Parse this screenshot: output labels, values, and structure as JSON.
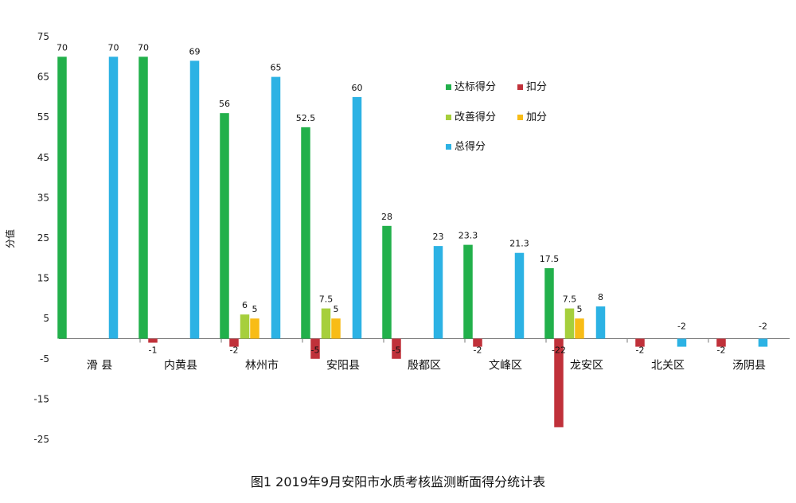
{
  "chart_data": {
    "type": "bar",
    "title": "图1  2019年9月安阳市水质考核监测断面得分统计表",
    "ylabel": "分值",
    "ylim": [
      -25,
      75
    ],
    "yticks": [
      75,
      65,
      55,
      45,
      35,
      25,
      15,
      5,
      -5,
      -15,
      -25
    ],
    "legend_position": "top-right",
    "categories": [
      "滑  县",
      "内黄县",
      "林州市",
      "安阳县",
      "殷都区",
      "文峰区",
      "龙安区",
      "北关区",
      "汤阴县"
    ],
    "series": [
      {
        "name": "达标得分",
        "color": "#22b04b",
        "values": [
          70,
          70,
          56,
          52.5,
          28,
          23.3,
          17.5,
          0,
          0
        ],
        "labels": [
          "70",
          "70",
          "56",
          "52.5",
          "28",
          "23.3",
          "17.5",
          "",
          ""
        ]
      },
      {
        "name": "扣分",
        "color": "#c0313a",
        "values": [
          0,
          -1,
          -2,
          -5,
          -5,
          -2,
          -22,
          -2,
          -2
        ],
        "labels": [
          "",
          "-1",
          "-2",
          "-5",
          "-5",
          "-2",
          "-22",
          "-2",
          "-2"
        ]
      },
      {
        "name": "改善得分",
        "color": "#a6cf3c",
        "values": [
          0,
          0,
          6,
          7.5,
          0,
          0,
          7.5,
          0,
          0
        ],
        "labels": [
          "",
          "",
          "6",
          "7.5",
          "",
          "",
          "7.5",
          "",
          ""
        ]
      },
      {
        "name": "加分",
        "color": "#f8bc16",
        "values": [
          0,
          0,
          5,
          5,
          0,
          0,
          5,
          0,
          0
        ],
        "labels": [
          "",
          "",
          "5",
          "5",
          "",
          "",
          "5",
          "",
          ""
        ]
      },
      {
        "name": "总得分",
        "color": "#2cb2e4",
        "values": [
          70,
          69,
          65,
          60,
          23,
          21.3,
          8,
          -2,
          -2
        ],
        "labels": [
          "70",
          "69",
          "65",
          "60",
          "23",
          "21.3",
          "8",
          "-2",
          "-2"
        ]
      }
    ]
  }
}
